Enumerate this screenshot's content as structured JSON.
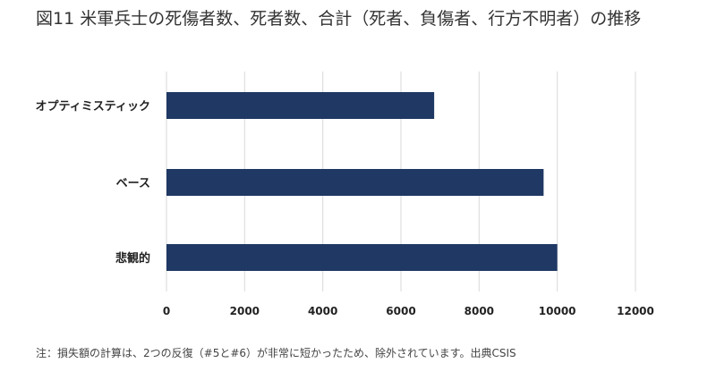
{
  "title": "図11 米軍兵士の死傷者数、死者数、合計（死者、負傷者、行方不明者）の推移",
  "note": "注：損失額の計算は、2つの反復（#5と#6）が非常に短かったため、除外されています。出典CSIS",
  "colors": {
    "bar": "#1f3864",
    "grid": "#d9d9d9"
  },
  "chart_data": {
    "type": "bar",
    "orientation": "horizontal",
    "categories": [
      "オプティミスティック",
      "ベース",
      "悲観的"
    ],
    "values": [
      6850,
      9650,
      10000
    ],
    "xlim": [
      0,
      12000
    ],
    "xticks": [
      0,
      2000,
      4000,
      6000,
      8000,
      10000,
      12000
    ],
    "grid": true,
    "legend": "none"
  }
}
